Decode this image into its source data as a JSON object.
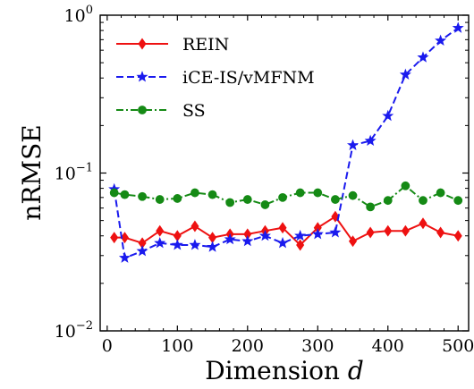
{
  "chart_data": {
    "type": "line",
    "xlabel": "Dimension",
    "xlabel_var": "d",
    "ylabel": "nRMSE",
    "y_scale": "log",
    "xlim": [
      -10,
      515
    ],
    "ylim": [
      0.01,
      1
    ],
    "x_ticks": [
      0,
      100,
      200,
      300,
      400,
      500
    ],
    "y_ticks": [
      {
        "value": 0.01,
        "base": "10",
        "exp": "−2"
      },
      {
        "value": 0.1,
        "base": "10",
        "exp": "−1"
      },
      {
        "value": 1,
        "base": "10",
        "exp": "0"
      }
    ],
    "grid": false,
    "legend_position": "top-left",
    "x": [
      10,
      25,
      50,
      75,
      100,
      125,
      150,
      175,
      200,
      225,
      250,
      275,
      300,
      325,
      350,
      375,
      400,
      425,
      450,
      475,
      500
    ],
    "series": [
      {
        "name": "REIN",
        "color": "#ee1111",
        "line_style": "solid",
        "marker": "diamond",
        "values": [
          0.039,
          0.039,
          0.036,
          0.043,
          0.04,
          0.046,
          0.039,
          0.041,
          0.041,
          0.043,
          0.045,
          0.035,
          0.045,
          0.053,
          0.037,
          0.042,
          0.043,
          0.043,
          0.048,
          0.042,
          0.04
        ]
      },
      {
        "name": "iCE-IS/vMFNM",
        "color": "#1a1aee",
        "line_style": "dashed",
        "marker": "star",
        "values": [
          0.079,
          0.029,
          0.032,
          0.036,
          0.035,
          0.035,
          0.034,
          0.038,
          0.037,
          0.04,
          0.036,
          0.04,
          0.041,
          0.042,
          0.15,
          0.16,
          0.23,
          0.42,
          0.54,
          0.69,
          0.83
        ]
      },
      {
        "name": "SS",
        "color": "#158a15",
        "line_style": "dashdot",
        "marker": "circle",
        "values": [
          0.075,
          0.073,
          0.071,
          0.068,
          0.069,
          0.075,
          0.073,
          0.065,
          0.068,
          0.063,
          0.07,
          0.075,
          0.075,
          0.068,
          0.072,
          0.061,
          0.067,
          0.083,
          0.067,
          0.075,
          0.067
        ]
      }
    ]
  }
}
